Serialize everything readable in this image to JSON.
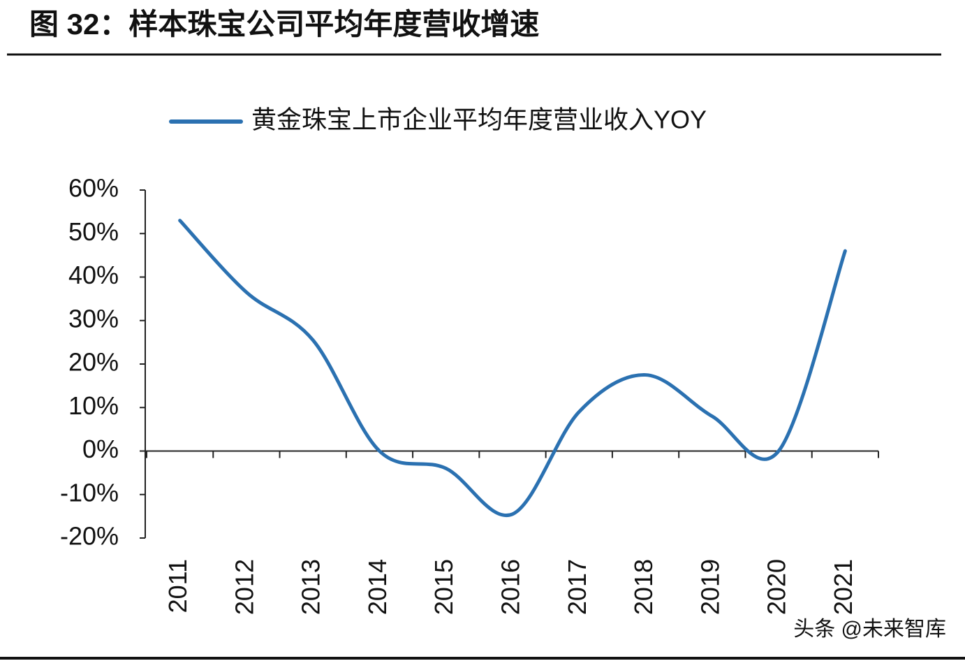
{
  "chart_data": {
    "type": "line",
    "title": "图 32：样本珠宝公司平均年度营收增速",
    "categories": [
      "2011",
      "2012",
      "2013",
      "2014",
      "2015",
      "2016",
      "2017",
      "2018",
      "2019",
      "2020",
      "2021"
    ],
    "series": [
      {
        "name": "黄金珠宝上市企业平均年度营业收入YOY",
        "color": "#2b71b1",
        "values": [
          53,
          36.5,
          25.5,
          0,
          -4,
          -14.5,
          9,
          17.5,
          8,
          0,
          46
        ]
      }
    ],
    "ylim": [
      -20,
      60
    ],
    "yticks": [
      {
        "value": -20,
        "label": "-20%"
      },
      {
        "value": -10,
        "label": "-10%"
      },
      {
        "value": 0,
        "label": "0%"
      },
      {
        "value": 10,
        "label": "10%"
      },
      {
        "value": 20,
        "label": "20%"
      },
      {
        "value": 30,
        "label": "30%"
      },
      {
        "value": 40,
        "label": "40%"
      },
      {
        "value": 50,
        "label": "50%"
      },
      {
        "value": 60,
        "label": "60%"
      }
    ],
    "smooth": true,
    "watermark": "头条 @未来智库"
  }
}
